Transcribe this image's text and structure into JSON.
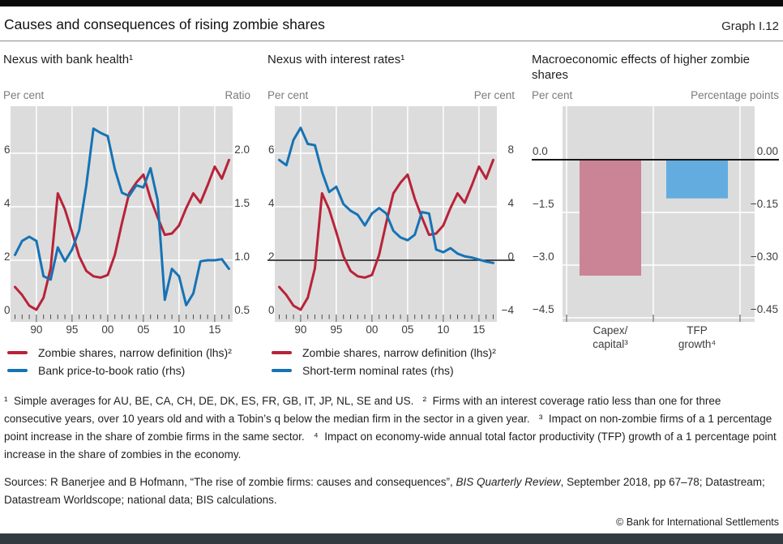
{
  "header": {
    "title": "Causes and consequences of rising zombie shares",
    "graph_label": "Graph I.12"
  },
  "chart_data": [
    {
      "type": "line",
      "title": "Nexus with bank health¹",
      "left_axis": {
        "unit": "Per cent",
        "ticks": [
          0,
          2,
          4,
          6
        ],
        "labels": [
          "0",
          "2",
          "4",
          "6"
        ]
      },
      "right_axis": {
        "unit": "Ratio",
        "ticks": [
          0.5,
          1.0,
          1.5,
          2.0
        ],
        "labels": [
          "0.5",
          "1.0",
          "1.5",
          "2.0"
        ]
      },
      "x": {
        "start_year": 1987,
        "end_year": 2017,
        "grid_years": [
          1990,
          1995,
          2000,
          2005,
          2010,
          2015
        ],
        "tick_labels": [
          "90",
          "95",
          "00",
          "05",
          "10",
          "15"
        ]
      },
      "series": [
        {
          "name": "Zombie shares, narrow definition (lhs)²",
          "axis": "left",
          "color": "#b82338",
          "values": [
            1.0,
            0.7,
            0.3,
            0.15,
            0.6,
            1.7,
            4.5,
            3.9,
            3.05,
            2.15,
            1.6,
            1.4,
            1.35,
            1.45,
            2.2,
            3.4,
            4.5,
            4.9,
            5.2,
            4.3,
            3.6,
            2.95,
            3.0,
            3.3,
            3.95,
            4.5,
            4.15,
            4.8,
            5.5,
            5.05,
            5.75
          ]
        },
        {
          "name": "Bank price-to-book ratio (rhs)",
          "axis": "right",
          "color": "#1673b4",
          "values": [
            1.05,
            1.18,
            1.22,
            1.18,
            0.85,
            0.82,
            1.12,
            0.99,
            1.1,
            1.28,
            1.7,
            2.23,
            2.19,
            2.16,
            1.85,
            1.63,
            1.6,
            1.7,
            1.68,
            1.86,
            1.56,
            0.63,
            0.92,
            0.85,
            0.58,
            0.69,
            0.99,
            1.0,
            1.0,
            1.01,
            0.92
          ]
        }
      ]
    },
    {
      "type": "line",
      "title": "Nexus with interest rates¹",
      "left_axis": {
        "unit": "Per cent",
        "ticks": [
          0,
          2,
          4,
          6
        ],
        "labels": [
          "0",
          "2",
          "4",
          "6"
        ]
      },
      "right_axis": {
        "unit": "Per cent",
        "ticks": [
          -4,
          0,
          4,
          8
        ],
        "labels": [
          "−4",
          "0",
          "4",
          "8"
        ]
      },
      "zero_line": {
        "axis": "right",
        "value": 0
      },
      "x": {
        "start_year": 1987,
        "end_year": 2017,
        "grid_years": [
          1990,
          1995,
          2000,
          2005,
          2010,
          2015
        ],
        "tick_labels": [
          "90",
          "95",
          "00",
          "05",
          "10",
          "15"
        ]
      },
      "series": [
        {
          "name": "Zombie shares, narrow definition (lhs)²",
          "axis": "left",
          "color": "#b82338",
          "values": [
            1.0,
            0.7,
            0.3,
            0.15,
            0.6,
            1.7,
            4.5,
            3.9,
            3.05,
            2.15,
            1.6,
            1.4,
            1.35,
            1.45,
            2.2,
            3.4,
            4.5,
            4.9,
            5.2,
            4.3,
            3.6,
            2.95,
            3.0,
            3.3,
            3.95,
            4.5,
            4.15,
            4.8,
            5.5,
            5.05,
            5.75
          ]
        },
        {
          "name": "Short-term nominal rates (rhs)",
          "axis": "right",
          "color": "#1673b4",
          "values": [
            7.5,
            7.1,
            9.0,
            9.9,
            8.7,
            8.6,
            6.6,
            5.1,
            5.5,
            4.2,
            3.7,
            3.4,
            2.6,
            3.5,
            3.9,
            3.5,
            2.2,
            1.7,
            1.5,
            1.9,
            3.6,
            3.5,
            0.8,
            0.6,
            0.9,
            0.5,
            0.3,
            0.2,
            0.05,
            -0.1,
            -0.2
          ]
        }
      ]
    },
    {
      "type": "bar",
      "title": "Macroeconomic effects of higher zombie shares",
      "left_axis": {
        "unit": "Per cent",
        "ticks": [
          0,
          -1.5,
          -3.0,
          -4.5
        ],
        "labels": [
          "0.0",
          "−1.5",
          "−3.0",
          "−4.5"
        ]
      },
      "right_axis": {
        "unit": "Percentage points",
        "ticks": [
          0,
          -0.15,
          -0.3,
          -0.45
        ],
        "labels": [
          "0.00",
          "−0.15",
          "−0.30",
          "−0.45"
        ]
      },
      "zero_line": {
        "axis": "left",
        "value": 0
      },
      "bars": [
        {
          "label_lines": [
            "Capex/",
            "capital³"
          ],
          "axis": "left",
          "value": -3.3,
          "color": "#cb8396"
        },
        {
          "label_lines": [
            "TFP",
            "growth⁴"
          ],
          "axis": "right",
          "value": -0.11,
          "color": "#63acdf"
        }
      ]
    }
  ],
  "footnotes": {
    "text": "¹  Simple averages for AU, BE, CA, CH, DE, DK, ES, FR, GB, IT, JP, NL, SE and US.   ²  Firms with an interest coverage ratio less than one for three consecutive years, over 10 years old and with a Tobin’s q below the median firm in the sector in a given year.   ³  Impact on non-zombie firms of a 1 percentage point increase in the share of zombie firms in the same sector.   ⁴  Impact on economy-wide annual total factor productivity (TFP) growth of a 1 percentage point increase in the share of zombies in the economy."
  },
  "sources": {
    "prefix": "Sources: R Banerjee and B Hofmann, “The rise of zombie firms: causes and consequences”, ",
    "italic": "BIS Quarterly Review",
    "suffix": ", September 2018, pp 67–78; Datastream; Datastream Worldscope; national data; BIS calculations."
  },
  "footer": {
    "copyright": "© Bank for International Settlements"
  }
}
